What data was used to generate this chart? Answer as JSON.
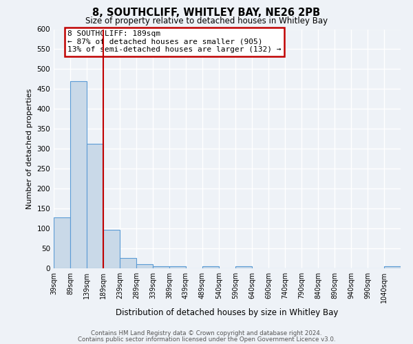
{
  "title": "8, SOUTHCLIFF, WHITLEY BAY, NE26 2PB",
  "subtitle": "Size of property relative to detached houses in Whitley Bay",
  "xlabel": "Distribution of detached houses by size in Whitley Bay",
  "ylabel": "Number of detached properties",
  "bar_labels": [
    "39sqm",
    "89sqm",
    "139sqm",
    "189sqm",
    "239sqm",
    "289sqm",
    "339sqm",
    "389sqm",
    "439sqm",
    "489sqm",
    "540sqm",
    "590sqm",
    "640sqm",
    "690sqm",
    "740sqm",
    "790sqm",
    "840sqm",
    "890sqm",
    "940sqm",
    "990sqm",
    "1040sqm"
  ],
  "bar_values": [
    128,
    470,
    312,
    96,
    26,
    10,
    5,
    5,
    0,
    5,
    0,
    5,
    0,
    0,
    0,
    0,
    0,
    0,
    0,
    0,
    5
  ],
  "bar_color": "#c9d9e8",
  "bar_edge_color": "#5b9bd5",
  "red_line_x": 3,
  "ylim": [
    0,
    600
  ],
  "yticks": [
    0,
    50,
    100,
    150,
    200,
    250,
    300,
    350,
    400,
    450,
    500,
    550,
    600
  ],
  "annotation_title": "8 SOUTHCLIFF: 189sqm",
  "annotation_line1": "← 87% of detached houses are smaller (905)",
  "annotation_line2": "13% of semi-detached houses are larger (132) →",
  "annotation_box_color": "white",
  "annotation_box_edge_color": "#c00000",
  "footer_line1": "Contains HM Land Registry data © Crown copyright and database right 2024.",
  "footer_line2": "Contains public sector information licensed under the Open Government Licence v3.0.",
  "background_color": "#eef2f7",
  "grid_color": "white"
}
